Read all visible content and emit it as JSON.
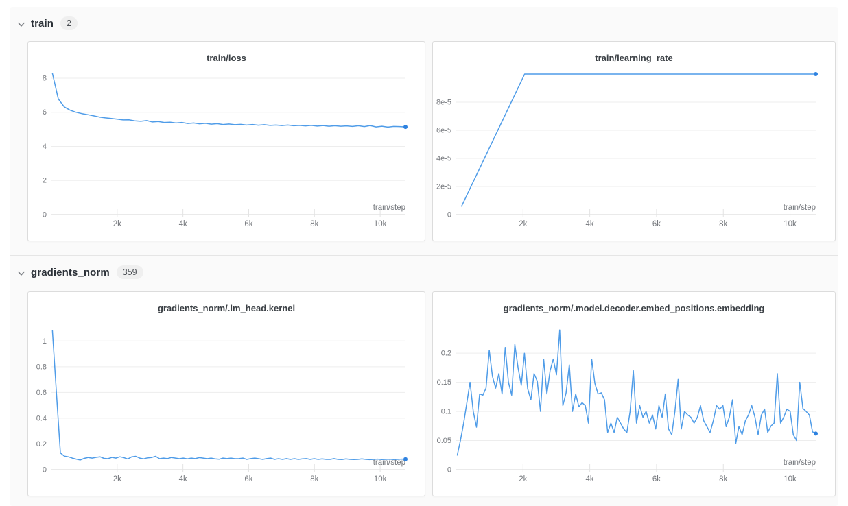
{
  "colors": {
    "line": "#4f9ce8",
    "endpoint": "#2e82e0",
    "grid": "#ededed",
    "axis": "#d4d4d4",
    "tick": "#e3e3e3",
    "tick_label": "#75787d",
    "title": "#3b4045",
    "panel_bg": "#fafafa",
    "card_border": "#dcdcdc"
  },
  "sections": [
    {
      "label": "train",
      "badge": "2",
      "collapse_icon": "chevron-down-icon",
      "chart_indexes": [
        0,
        1
      ]
    },
    {
      "label": "gradients_norm",
      "badge": "359",
      "collapse_icon": "chevron-down-icon",
      "chart_indexes": [
        2,
        3
      ]
    }
  ],
  "chart_data": [
    {
      "type": "line",
      "title": "train/loss",
      "xlabel": "train/step",
      "xlim": [
        0,
        10770
      ],
      "ylim": [
        0,
        8.32
      ],
      "yticks": [
        {
          "v": 0,
          "label": "0"
        },
        {
          "v": 2,
          "label": "2"
        },
        {
          "v": 4,
          "label": "4"
        },
        {
          "v": 6,
          "label": "6"
        },
        {
          "v": 8,
          "label": "8"
        }
      ],
      "xticks": [
        {
          "v": 2000,
          "label": "2k"
        },
        {
          "v": 4000,
          "label": "4k"
        },
        {
          "v": 6000,
          "label": "6k"
        },
        {
          "v": 8000,
          "label": "8k"
        },
        {
          "v": 10000,
          "label": "10k"
        }
      ],
      "x_range": [
        30,
        10770
      ],
      "values": [
        8.28,
        6.78,
        6.32,
        6.12,
        6.0,
        5.92,
        5.86,
        5.79,
        5.72,
        5.67,
        5.64,
        5.6,
        5.55,
        5.56,
        5.5,
        5.47,
        5.51,
        5.43,
        5.46,
        5.4,
        5.42,
        5.37,
        5.4,
        5.34,
        5.37,
        5.32,
        5.35,
        5.3,
        5.33,
        5.28,
        5.31,
        5.27,
        5.29,
        5.25,
        5.28,
        5.24,
        5.27,
        5.23,
        5.25,
        5.22,
        5.25,
        5.21,
        5.23,
        5.2,
        5.23,
        5.19,
        5.22,
        5.18,
        5.21,
        5.18,
        5.2,
        5.17,
        5.21,
        5.16,
        5.22,
        5.14,
        5.18,
        5.13,
        5.17,
        5.16,
        5.14
      ],
      "grid": true,
      "legend": "none"
    },
    {
      "type": "line",
      "title": "train/learning_rate",
      "xlabel": "train/step",
      "xlim": [
        0,
        10770
      ],
      "ylim": [
        0,
        0.000101
      ],
      "yticks": [
        {
          "v": 0,
          "label": "0"
        },
        {
          "v": 2e-05,
          "label": "2e-5"
        },
        {
          "v": 4e-05,
          "label": "4e-5"
        },
        {
          "v": 6e-05,
          "label": "6e-5"
        },
        {
          "v": 8e-05,
          "label": "8e-5"
        }
      ],
      "xticks": [
        {
          "v": 2000,
          "label": "2k"
        },
        {
          "v": 4000,
          "label": "4k"
        },
        {
          "v": 6000,
          "label": "6k"
        },
        {
          "v": 8000,
          "label": "8k"
        },
        {
          "v": 10000,
          "label": "10k"
        }
      ],
      "points": [
        [
          160,
          6e-06
        ],
        [
          2050,
          0.0001
        ],
        [
          10770,
          0.0001
        ]
      ],
      "grid": true,
      "legend": "none"
    },
    {
      "type": "line",
      "title": "gradients_norm/.lm_head.kernel",
      "xlabel": "train/step",
      "xlim": [
        0,
        10770
      ],
      "ylim": [
        0,
        1.14
      ],
      "yticks": [
        {
          "v": 0,
          "label": "0"
        },
        {
          "v": 0.2,
          "label": "0.2"
        },
        {
          "v": 0.4,
          "label": "0.4"
        },
        {
          "v": 0.6,
          "label": "0.6"
        },
        {
          "v": 0.8,
          "label": "0.8"
        },
        {
          "v": 1,
          "label": "1"
        }
      ],
      "xticks": [
        {
          "v": 2000,
          "label": "2k"
        },
        {
          "v": 4000,
          "label": "4k"
        },
        {
          "v": 6000,
          "label": "6k"
        },
        {
          "v": 8000,
          "label": "8k"
        },
        {
          "v": 10000,
          "label": "10k"
        }
      ],
      "x_range": [
        30,
        10770
      ],
      "values": [
        1.08,
        0.6,
        0.13,
        0.105,
        0.1,
        0.09,
        0.082,
        0.075,
        0.088,
        0.095,
        0.09,
        0.096,
        0.1,
        0.088,
        0.085,
        0.096,
        0.09,
        0.1,
        0.094,
        0.083,
        0.1,
        0.104,
        0.09,
        0.084,
        0.092,
        0.095,
        0.104,
        0.085,
        0.09,
        0.086,
        0.095,
        0.09,
        0.085,
        0.09,
        0.084,
        0.09,
        0.086,
        0.094,
        0.09,
        0.085,
        0.09,
        0.084,
        0.081,
        0.09,
        0.086,
        0.09,
        0.085,
        0.086,
        0.09,
        0.08,
        0.086,
        0.09,
        0.085,
        0.08,
        0.086,
        0.09,
        0.08,
        0.085,
        0.08,
        0.086,
        0.08,
        0.085,
        0.08,
        0.084,
        0.086,
        0.08,
        0.085,
        0.08,
        0.084,
        0.08,
        0.08,
        0.086,
        0.08,
        0.079,
        0.084,
        0.08,
        0.079,
        0.08,
        0.084,
        0.08,
        0.078,
        0.08,
        0.082,
        0.079,
        0.08,
        0.081,
        0.079,
        0.08,
        0.082,
        0.081
      ],
      "grid": true,
      "legend": "none"
    },
    {
      "type": "line",
      "title": "gradients_norm/.model.decoder.embed_positions.embedding",
      "xlabel": "train/step",
      "xlim": [
        0,
        10770
      ],
      "ylim": [
        0,
        0.252
      ],
      "yticks": [
        {
          "v": 0,
          "label": "0"
        },
        {
          "v": 0.05,
          "label": "0.05"
        },
        {
          "v": 0.1,
          "label": "0.1"
        },
        {
          "v": 0.15,
          "label": "0.15"
        },
        {
          "v": 0.2,
          "label": "0.2"
        }
      ],
      "xticks": [
        {
          "v": 2000,
          "label": "2k"
        },
        {
          "v": 4000,
          "label": "4k"
        },
        {
          "v": 6000,
          "label": "6k"
        },
        {
          "v": 8000,
          "label": "8k"
        },
        {
          "v": 10000,
          "label": "10k"
        }
      ],
      "x_range": [
        30,
        10770
      ],
      "values": [
        0.025,
        0.05,
        0.08,
        0.115,
        0.15,
        0.1,
        0.073,
        0.13,
        0.128,
        0.14,
        0.205,
        0.16,
        0.14,
        0.165,
        0.13,
        0.21,
        0.15,
        0.128,
        0.215,
        0.175,
        0.145,
        0.2,
        0.139,
        0.12,
        0.165,
        0.152,
        0.1,
        0.19,
        0.13,
        0.17,
        0.19,
        0.163,
        0.24,
        0.11,
        0.132,
        0.18,
        0.1,
        0.13,
        0.108,
        0.115,
        0.11,
        0.08,
        0.19,
        0.148,
        0.13,
        0.132,
        0.12,
        0.064,
        0.08,
        0.064,
        0.09,
        0.08,
        0.07,
        0.064,
        0.1,
        0.17,
        0.08,
        0.11,
        0.09,
        0.1,
        0.08,
        0.094,
        0.07,
        0.11,
        0.09,
        0.13,
        0.07,
        0.06,
        0.1,
        0.155,
        0.07,
        0.1,
        0.094,
        0.09,
        0.08,
        0.09,
        0.11,
        0.084,
        0.074,
        0.064,
        0.084,
        0.11,
        0.104,
        0.11,
        0.074,
        0.09,
        0.12,
        0.045,
        0.074,
        0.06,
        0.084,
        0.094,
        0.11,
        0.09,
        0.06,
        0.094,
        0.104,
        0.064,
        0.075,
        0.08,
        0.165,
        0.08,
        0.09,
        0.104,
        0.1,
        0.06,
        0.05,
        0.15,
        0.105,
        0.1,
        0.094,
        0.065,
        0.062
      ],
      "grid": true,
      "legend": "none"
    }
  ]
}
